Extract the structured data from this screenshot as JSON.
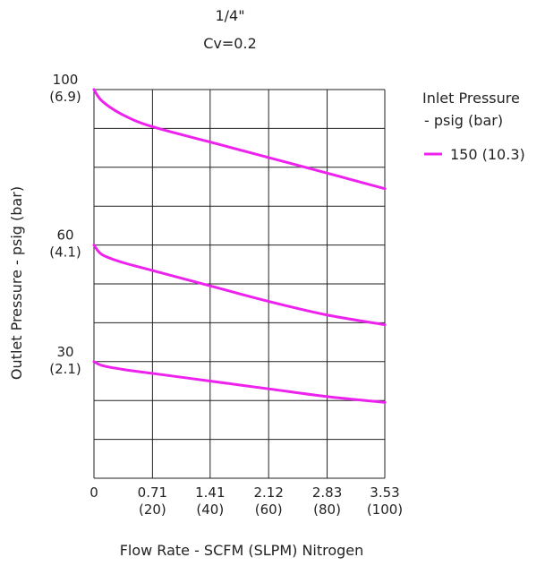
{
  "chart_data": {
    "type": "line",
    "title": "1/4\"",
    "subtitle": "Cv=0.2",
    "xlabel": "Flow Rate - SCFM (SLPM) Nitrogen",
    "ylabel": "Outlet Pressure - psig (bar)",
    "xlim": [
      0,
      3.53
    ],
    "ylim": [
      0,
      100
    ],
    "grid": true,
    "x_ticks": [
      {
        "value": 0,
        "label": "0",
        "sublabel": ""
      },
      {
        "value": 0.71,
        "label": "0.71",
        "sublabel": "(20)"
      },
      {
        "value": 1.41,
        "label": "1.41",
        "sublabel": "(40)"
      },
      {
        "value": 2.12,
        "label": "2.12",
        "sublabel": "(60)"
      },
      {
        "value": 2.83,
        "label": "2.83",
        "sublabel": "(80)"
      },
      {
        "value": 3.53,
        "label": "3.53",
        "sublabel": "(100)"
      }
    ],
    "y_ticks": [
      {
        "value": 100,
        "label": "100",
        "sublabel": "(6.9)"
      },
      {
        "value": 60,
        "label": "60",
        "sublabel": "(4.1)"
      },
      {
        "value": 30,
        "label": "30",
        "sublabel": "(2.1)"
      }
    ],
    "legend": {
      "title_line1": "Inlet Pressure",
      "title_line2": "- psig (bar)",
      "position": "top-right"
    },
    "series": [
      {
        "name": "150 (10.3)",
        "color": "#ee22ee",
        "curves": [
          {
            "set_point": 100,
            "points": [
              [
                0,
                100
              ],
              [
                0.1,
                97
              ],
              [
                0.35,
                93.5
              ],
              [
                0.7,
                90.5
              ],
              [
                1.41,
                86.5
              ],
              [
                2.12,
                82.5
              ],
              [
                2.83,
                78.5
              ],
              [
                3.53,
                74.5
              ]
            ]
          },
          {
            "set_point": 60,
            "points": [
              [
                0,
                60
              ],
              [
                0.1,
                57.5
              ],
              [
                0.35,
                55.5
              ],
              [
                0.7,
                53.5
              ],
              [
                1.41,
                49.5
              ],
              [
                2.12,
                45.5
              ],
              [
                2.83,
                42
              ],
              [
                3.53,
                39.5
              ]
            ]
          },
          {
            "set_point": 30,
            "points": [
              [
                0,
                30
              ],
              [
                0.1,
                29
              ],
              [
                0.35,
                28
              ],
              [
                0.7,
                27
              ],
              [
                1.41,
                25
              ],
              [
                2.12,
                23
              ],
              [
                2.83,
                21
              ],
              [
                3.53,
                19.5
              ]
            ]
          }
        ]
      }
    ]
  }
}
